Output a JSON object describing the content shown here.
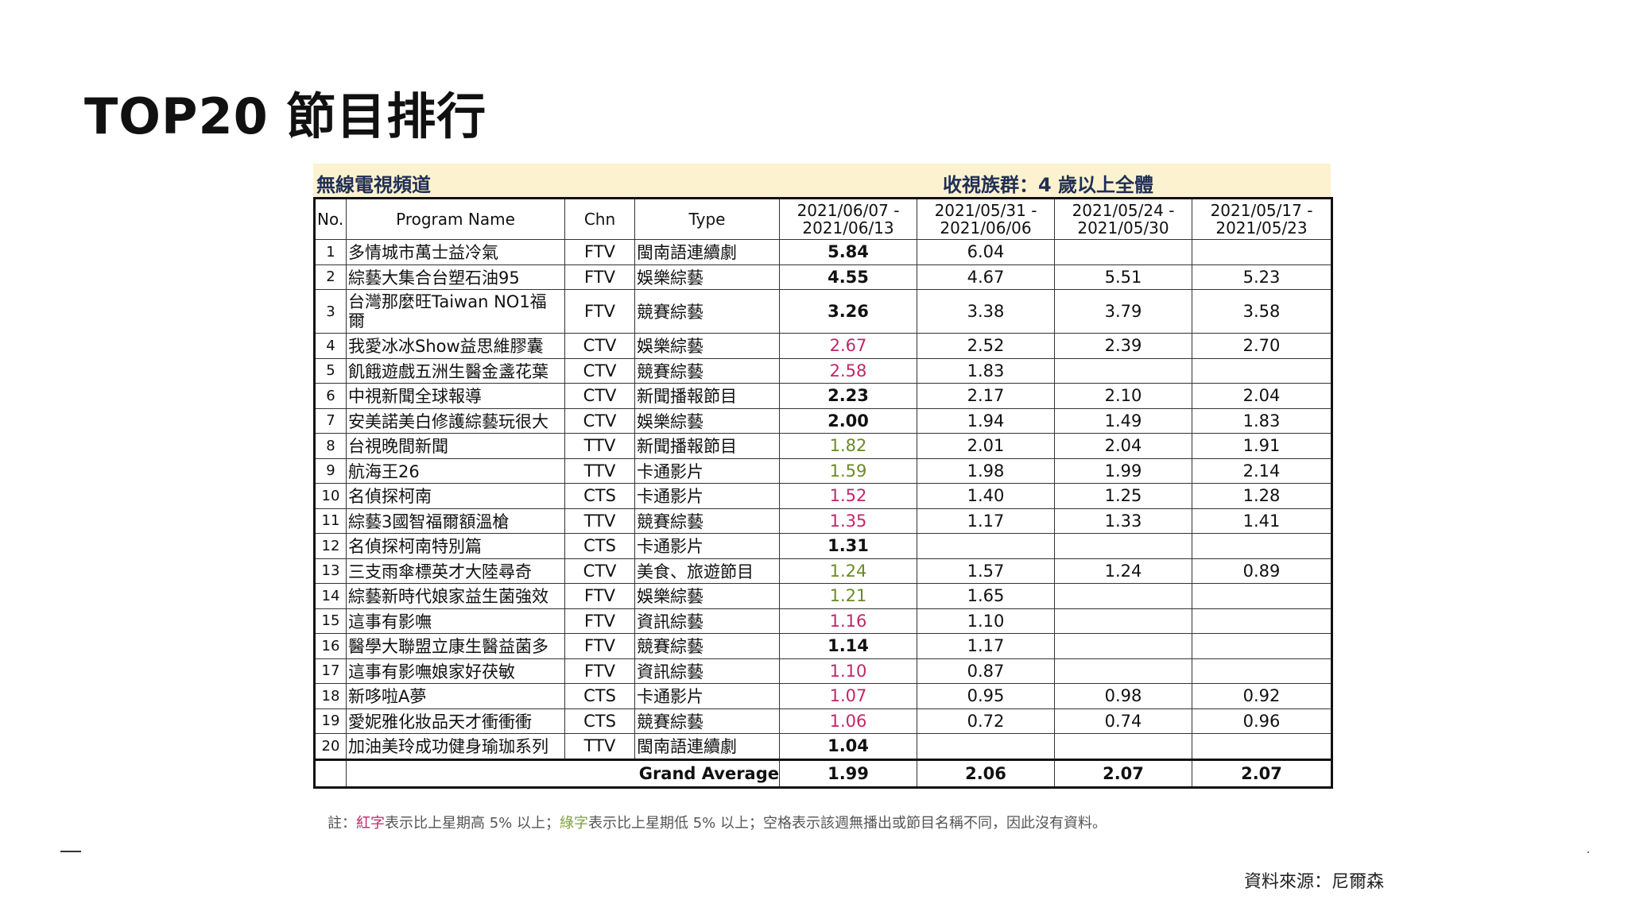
{
  "title": "TOP20 節目排行",
  "banner": {
    "channel_group": "無線電視頻道",
    "audience": "收視族群：4 歲以上全體"
  },
  "headers": {
    "no": "No.",
    "name": "Program Name",
    "chn": "Chn",
    "type": "Type",
    "weeks": [
      [
        "2021/06/07 -",
        "2021/06/13"
      ],
      [
        "2021/05/31 -",
        "2021/06/06"
      ],
      [
        "2021/05/24 -",
        "2021/05/30"
      ],
      [
        "2021/05/17 -",
        "2021/05/23"
      ]
    ]
  },
  "rows": [
    {
      "no": "1",
      "name": "多情城市萬士益冷氣",
      "chn": "FTV",
      "type": "閩南語連續劇",
      "w1": "5.84",
      "w2": "6.04",
      "w3": "",
      "w4": "",
      "color": ""
    },
    {
      "no": "2",
      "name": "綜藝大集合台塑石油95",
      "chn": "FTV",
      "type": "娛樂綜藝",
      "w1": "4.55",
      "w2": "4.67",
      "w3": "5.51",
      "w4": "5.23",
      "color": ""
    },
    {
      "no": "3",
      "name": "台灣那麼旺Taiwan NO1福爾",
      "chn": "FTV",
      "type": "競賽綜藝",
      "w1": "3.26",
      "w2": "3.38",
      "w3": "3.79",
      "w4": "3.58",
      "color": "",
      "wrap": true
    },
    {
      "no": "4",
      "name": "我愛冰冰Show益思維膠囊",
      "chn": "CTV",
      "type": "娛樂綜藝",
      "w1": "2.67",
      "w2": "2.52",
      "w3": "2.39",
      "w4": "2.70",
      "color": "red"
    },
    {
      "no": "5",
      "name": "飢餓遊戲五洲生醫金盞花葉",
      "chn": "CTV",
      "type": "競賽綜藝",
      "w1": "2.58",
      "w2": "1.83",
      "w3": "",
      "w4": "",
      "color": "red"
    },
    {
      "no": "6",
      "name": "中視新聞全球報導",
      "chn": "CTV",
      "type": "新聞播報節目",
      "w1": "2.23",
      "w2": "2.17",
      "w3": "2.10",
      "w4": "2.04",
      "color": ""
    },
    {
      "no": "7",
      "name": "安美諾美白修護綜藝玩很大",
      "chn": "CTV",
      "type": "娛樂綜藝",
      "w1": "2.00",
      "w2": "1.94",
      "w3": "1.49",
      "w4": "1.83",
      "color": ""
    },
    {
      "no": "8",
      "name": "台視晚間新聞",
      "chn": "TTV",
      "type": "新聞播報節目",
      "w1": "1.82",
      "w2": "2.01",
      "w3": "2.04",
      "w4": "1.91",
      "color": "green"
    },
    {
      "no": "9",
      "name": "航海王26",
      "chn": "TTV",
      "type": "卡通影片",
      "w1": "1.59",
      "w2": "1.98",
      "w3": "1.99",
      "w4": "2.14",
      "color": "green"
    },
    {
      "no": "10",
      "name": "名偵探柯南",
      "chn": "CTS",
      "type": "卡通影片",
      "w1": "1.52",
      "w2": "1.40",
      "w3": "1.25",
      "w4": "1.28",
      "color": "red"
    },
    {
      "no": "11",
      "name": "綜藝3國智福爾額溫槍",
      "chn": "TTV",
      "type": "競賽綜藝",
      "w1": "1.35",
      "w2": "1.17",
      "w3": "1.33",
      "w4": "1.41",
      "color": "red"
    },
    {
      "no": "12",
      "name": "名偵探柯南特別篇",
      "chn": "CTS",
      "type": "卡通影片",
      "w1": "1.31",
      "w2": "",
      "w3": "",
      "w4": "",
      "color": ""
    },
    {
      "no": "13",
      "name": "三支雨傘標英才大陸尋奇",
      "chn": "CTV",
      "type": "美食、旅遊節目",
      "w1": "1.24",
      "w2": "1.57",
      "w3": "1.24",
      "w4": "0.89",
      "color": "green"
    },
    {
      "no": "14",
      "name": "綜藝新時代娘家益生菌強效",
      "chn": "FTV",
      "type": "娛樂綜藝",
      "w1": "1.21",
      "w2": "1.65",
      "w3": "",
      "w4": "",
      "color": "green"
    },
    {
      "no": "15",
      "name": "這事有影嘸",
      "chn": "FTV",
      "type": "資訊綜藝",
      "w1": "1.16",
      "w2": "1.10",
      "w3": "",
      "w4": "",
      "color": "red"
    },
    {
      "no": "16",
      "name": "醫學大聯盟立康生醫益菌多",
      "chn": "FTV",
      "type": "競賽綜藝",
      "w1": "1.14",
      "w2": "1.17",
      "w3": "",
      "w4": "",
      "color": ""
    },
    {
      "no": "17",
      "name": "這事有影嘸娘家好茯敏",
      "chn": "FTV",
      "type": "資訊綜藝",
      "w1": "1.10",
      "w2": "0.87",
      "w3": "",
      "w4": "",
      "color": "red"
    },
    {
      "no": "18",
      "name": "新哆啦A夢",
      "chn": "CTS",
      "type": "卡通影片",
      "w1": "1.07",
      "w2": "0.95",
      "w3": "0.98",
      "w4": "0.92",
      "color": "red"
    },
    {
      "no": "19",
      "name": "愛妮雅化妝品天才衝衝衝",
      "chn": "CTS",
      "type": "競賽綜藝",
      "w1": "1.06",
      "w2": "0.72",
      "w3": "0.74",
      "w4": "0.96",
      "color": "red"
    },
    {
      "no": "20",
      "name": "加油美玲成功健身瑜珈系列",
      "chn": "TTV",
      "type": "閩南語連續劇",
      "w1": "1.04",
      "w2": "",
      "w3": "",
      "w4": "",
      "color": ""
    }
  ],
  "grand_average": {
    "label": "Grand Average",
    "w1": "1.99",
    "w2": "2.06",
    "w3": "2.07",
    "w4": "2.07"
  },
  "note": {
    "prefix": "註：",
    "red_word": "紅字",
    "red_text": "表示比上星期高 5% 以上；",
    "green_word": "綠字",
    "green_text": "表示比上星期低 5% 以上；空格表示該週無播出或節目名稱不同，因此沒有資料。"
  },
  "source": "資料來源：尼爾森",
  "colors": {
    "red": "#c0266a",
    "green": "#6b8a27",
    "banner_bg": "#fdf2d0",
    "banner_text": "#1f2f55"
  }
}
